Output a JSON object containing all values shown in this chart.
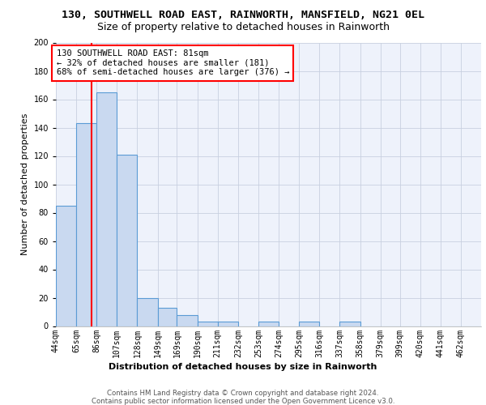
{
  "title": "130, SOUTHWELL ROAD EAST, RAINWORTH, MANSFIELD, NG21 0EL",
  "subtitle": "Size of property relative to detached houses in Rainworth",
  "xlabel": "Distribution of detached houses by size in Rainworth",
  "ylabel": "Number of detached properties",
  "bin_edges": [
    44,
    65,
    86,
    107,
    128,
    149,
    169,
    190,
    211,
    232,
    253,
    274,
    295,
    316,
    337,
    358,
    379,
    399,
    420,
    441,
    462,
    483
  ],
  "bin_labels": [
    "44sqm",
    "65sqm",
    "86sqm",
    "107sqm",
    "128sqm",
    "149sqm",
    "169sqm",
    "190sqm",
    "211sqm",
    "232sqm",
    "253sqm",
    "274sqm",
    "295sqm",
    "316sqm",
    "337sqm",
    "358sqm",
    "379sqm",
    "399sqm",
    "420sqm",
    "441sqm",
    "462sqm"
  ],
  "counts": [
    85,
    143,
    165,
    121,
    20,
    13,
    8,
    3,
    3,
    0,
    3,
    0,
    3,
    0,
    3,
    0,
    0,
    0,
    0,
    0,
    0
  ],
  "bar_color": "#c9d9f0",
  "bar_edge_color": "#5b9bd5",
  "red_line_x": 81,
  "ylim": [
    0,
    200
  ],
  "yticks": [
    0,
    20,
    40,
    60,
    80,
    100,
    120,
    140,
    160,
    180,
    200
  ],
  "annotation_line1": "130 SOUTHWELL ROAD EAST: 81sqm",
  "annotation_line2": "← 32% of detached houses are smaller (181)",
  "annotation_line3": "68% of semi-detached houses are larger (376) →",
  "footer_line1": "Contains HM Land Registry data © Crown copyright and database right 2024.",
  "footer_line2": "Contains public sector information licensed under the Open Government Licence v3.0.",
  "background_color": "#eef2fb",
  "grid_color": "#c8d0e0",
  "title_fontsize": 9.5,
  "subtitle_fontsize": 9,
  "ylabel_fontsize": 8,
  "xlabel_fontsize": 8,
  "tick_fontsize": 7,
  "annot_fontsize": 7.5,
  "footer_fontsize": 6.2
}
